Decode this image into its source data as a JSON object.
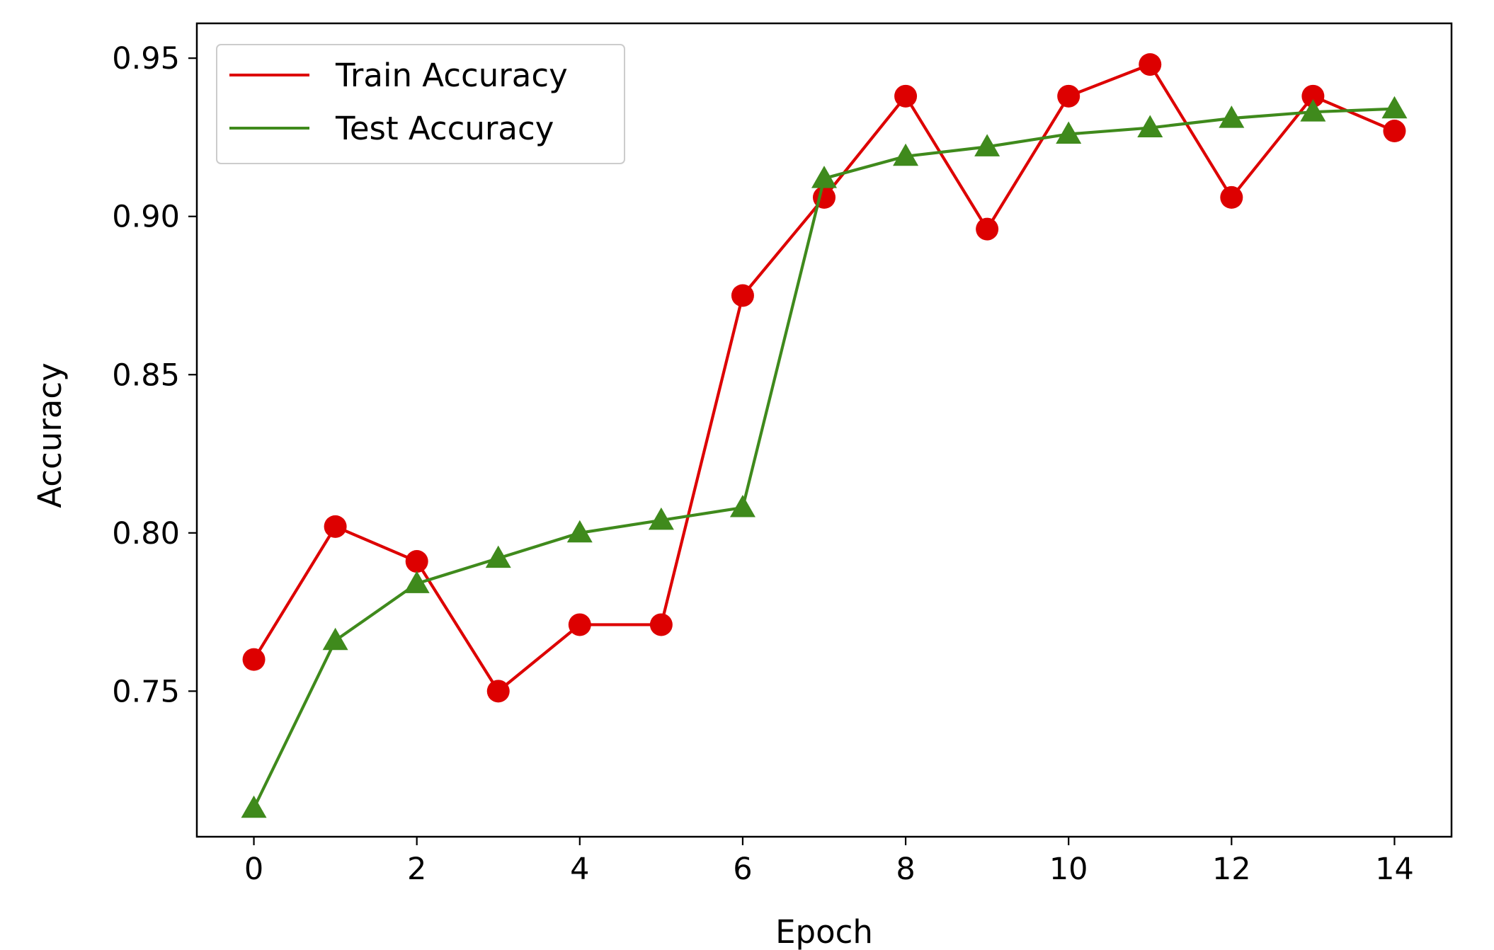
{
  "chart_data": {
    "type": "line",
    "title": "",
    "xlabel": "Epoch",
    "ylabel": "Accuracy",
    "xlim": [
      -0.7,
      14.7
    ],
    "ylim": [
      0.704,
      0.961
    ],
    "xticks": [
      0,
      2,
      4,
      6,
      8,
      10,
      12,
      14
    ],
    "yticks": [
      0.75,
      0.8,
      0.85,
      0.9,
      0.95
    ],
    "ytick_labels": [
      "0.75",
      "0.80",
      "0.85",
      "0.90",
      "0.95"
    ],
    "grid": false,
    "legend_position": "top-left",
    "x": [
      0,
      1,
      2,
      3,
      4,
      5,
      6,
      7,
      8,
      9,
      10,
      11,
      12,
      13,
      14
    ],
    "series": [
      {
        "name": "Train Accuracy",
        "color": "#dd0000",
        "marker": "circle",
        "values": [
          0.76,
          0.802,
          0.791,
          0.75,
          0.771,
          0.771,
          0.875,
          0.906,
          0.938,
          0.896,
          0.938,
          0.948,
          0.906,
          0.938,
          0.927
        ]
      },
      {
        "name": "Test Accuracy",
        "color": "#3f8a1c",
        "marker": "triangle",
        "values": [
          0.713,
          0.766,
          0.784,
          0.792,
          0.8,
          0.804,
          0.808,
          0.912,
          0.919,
          0.922,
          0.926,
          0.928,
          0.931,
          0.933,
          0.934
        ]
      }
    ]
  }
}
